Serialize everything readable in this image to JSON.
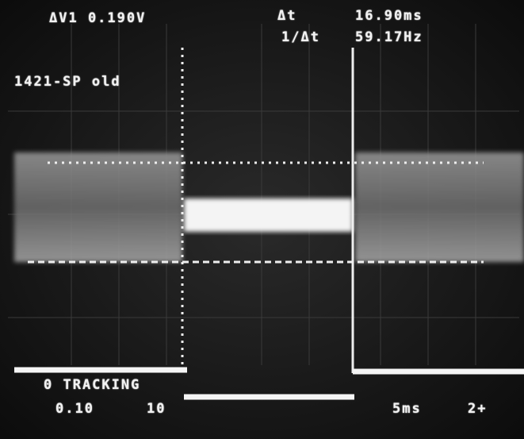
{
  "readout": {
    "delta_v": "ΔV1 0.190V",
    "delta_t_label": "Δt",
    "delta_t_value": "16.90ms",
    "freq_label": "1/Δt",
    "freq_value": "59.17Hz",
    "channel_id": "1421-SP old",
    "tracking": "0 TRACKING",
    "scale_left": "0.10",
    "scale_mid": "10",
    "timebase": "5ms",
    "trigger": "2+"
  }
}
